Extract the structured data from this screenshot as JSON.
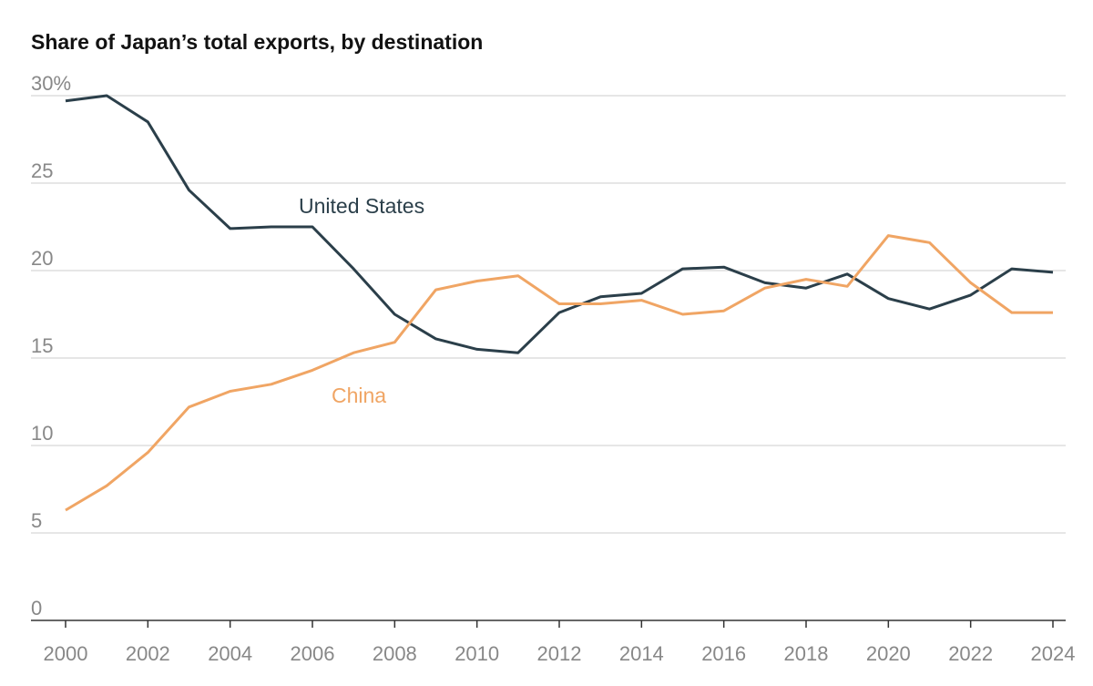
{
  "chart_data": {
    "type": "line",
    "title": "Share of Japan’s total exports, by destination",
    "x": [
      2000,
      2001,
      2002,
      2003,
      2004,
      2005,
      2006,
      2007,
      2008,
      2009,
      2010,
      2011,
      2012,
      2013,
      2014,
      2015,
      2016,
      2017,
      2018,
      2019,
      2020,
      2021,
      2022,
      2023,
      2024
    ],
    "xticks": [
      "2000",
      "2002",
      "2004",
      "2006",
      "2008",
      "2010",
      "2012",
      "2014",
      "2016",
      "2018",
      "2020",
      "2022",
      "2024"
    ],
    "yticks": [
      "0",
      "5",
      "10",
      "15",
      "20",
      "25",
      "30%"
    ],
    "ylim": [
      0,
      30
    ],
    "grid": true,
    "series": [
      {
        "name": "United States",
        "color": "#2b3f4a",
        "values": [
          29.7,
          30.0,
          28.5,
          24.6,
          22.4,
          22.5,
          22.5,
          20.1,
          17.5,
          16.1,
          15.5,
          15.3,
          17.6,
          18.5,
          18.7,
          20.1,
          20.2,
          19.3,
          19.0,
          19.8,
          18.4,
          17.8,
          18.6,
          20.1,
          19.9
        ]
      },
      {
        "name": "China",
        "color": "#f0a564",
        "values": [
          6.3,
          7.7,
          9.6,
          12.2,
          13.1,
          13.5,
          14.3,
          15.3,
          15.9,
          18.9,
          19.4,
          19.7,
          18.1,
          18.1,
          18.3,
          17.5,
          17.7,
          19.0,
          19.5,
          19.1,
          22.0,
          21.6,
          19.3,
          17.6,
          17.6
        ]
      }
    ]
  }
}
